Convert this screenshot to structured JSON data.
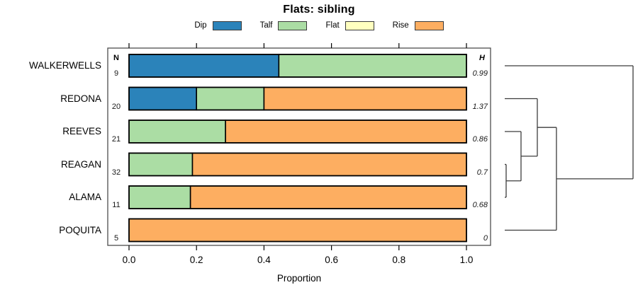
{
  "figure": {
    "title": "Flats: sibling",
    "xlabel": "Proportion",
    "n_header": "N",
    "h_header": "H"
  },
  "chart_data": {
    "type": "bar",
    "orientation": "horizontal",
    "stacked": true,
    "title": "Flats: sibling",
    "xlabel": "Proportion",
    "xlim": [
      0.0,
      1.0
    ],
    "xticks": [
      "0.0",
      "0.2",
      "0.4",
      "0.6",
      "0.8",
      "1.0"
    ],
    "grid": false,
    "legend_position": "top",
    "legend": [
      {
        "label": "Dip",
        "color": "#2B83BA"
      },
      {
        "label": "Talf",
        "color": "#ABDDA4"
      },
      {
        "label": "Flat",
        "color": "#FFFFBF"
      },
      {
        "label": "Rise",
        "color": "#FDAE61"
      }
    ],
    "rows": [
      {
        "label": "WALKERWELLS",
        "n": 9,
        "h": "0.99",
        "segments": {
          "Dip": 0.444,
          "Talf": 0.556,
          "Flat": 0,
          "Rise": 0
        }
      },
      {
        "label": "REDONA",
        "n": 20,
        "h": "1.37",
        "segments": {
          "Dip": 0.2,
          "Talf": 0.2,
          "Flat": 0,
          "Rise": 0.6
        }
      },
      {
        "label": "REEVES",
        "n": 21,
        "h": "0.86",
        "segments": {
          "Dip": 0,
          "Talf": 0.286,
          "Flat": 0,
          "Rise": 0.714
        }
      },
      {
        "label": "REAGAN",
        "n": 32,
        "h": "0.7",
        "segments": {
          "Dip": 0,
          "Talf": 0.188,
          "Flat": 0,
          "Rise": 0.812
        }
      },
      {
        "label": "ALAMA",
        "n": 11,
        "h": "0.68",
        "segments": {
          "Dip": 0,
          "Talf": 0.182,
          "Flat": 0,
          "Rise": 0.818
        }
      },
      {
        "label": "POQUITA",
        "n": 5,
        "h": "0",
        "segments": {
          "Dip": 0,
          "Talf": 0,
          "Flat": 0,
          "Rise": 1.0
        }
      }
    ],
    "dendrogram": {
      "position": "right",
      "tree": {
        "height": 1.0,
        "children": [
          "WALKERWELLS",
          {
            "height": 0.403,
            "children": [
              {
                "height": 0.254,
                "children": [
                  "REDONA",
                  {
                    "height": 0.127,
                    "children": [
                      "REEVES",
                      {
                        "height": 0.011,
                        "children": [
                          "REAGAN",
                          "ALAMA"
                        ]
                      }
                    ]
                  }
                ]
              },
              "POQUITA"
            ]
          }
        ]
      }
    },
    "colors": {
      "bar_border": "#000000",
      "frame": "#4d4d4d",
      "dendrogram_line": "#3c3c3c"
    }
  }
}
